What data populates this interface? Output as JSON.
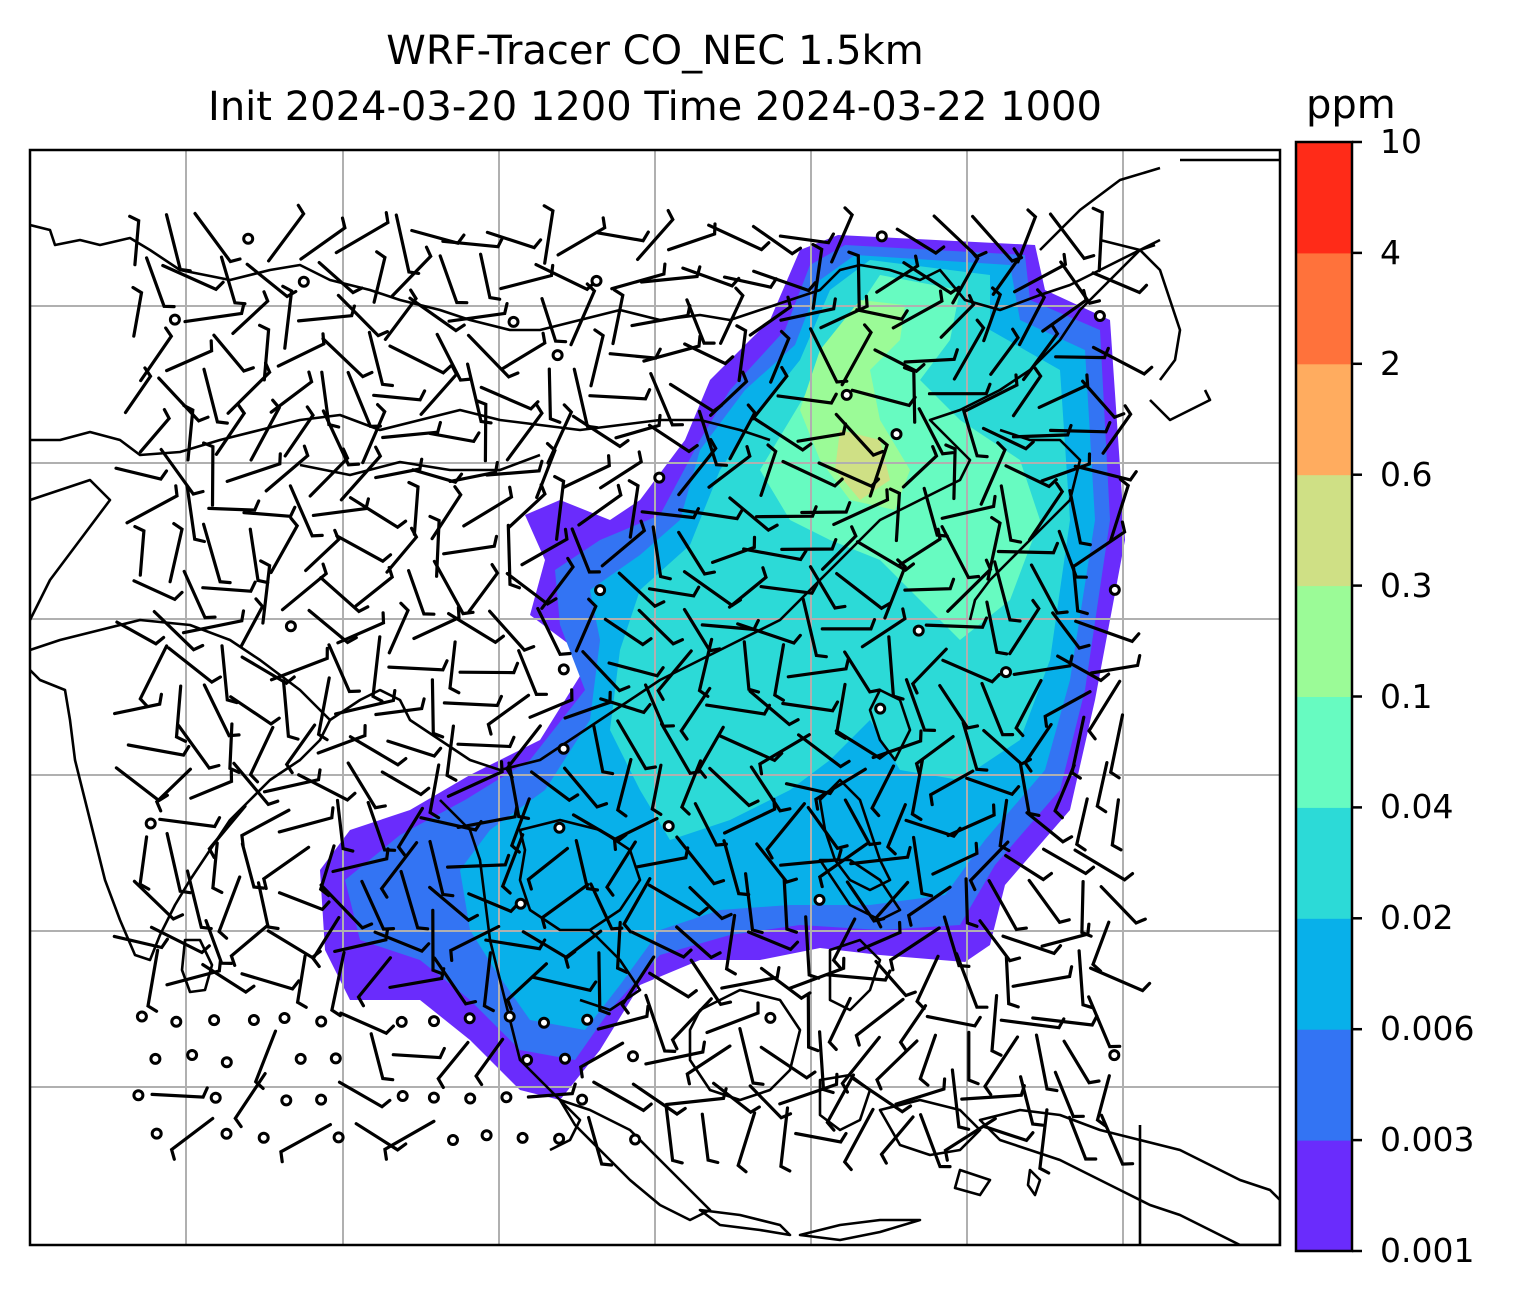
{
  "title": {
    "line1": "WRF-Tracer CO_NEC 1.5km",
    "line2": "Init 2024-03-20 1200 Time 2024-03-22 1000"
  },
  "colorbar": {
    "unit": "ppm",
    "levels": [
      "0.001",
      "0.003",
      "0.006",
      "0.02",
      "0.04",
      "0.1",
      "0.3",
      "0.6",
      "2",
      "4",
      "10"
    ],
    "colors": [
      "#6a2cfc",
      "#3374f3",
      "#08b0ea",
      "#2cdad7",
      "#67fbc1",
      "#9bfb97",
      "#cfe085",
      "#ffac5f",
      "#ff723b",
      "#ff2b18"
    ]
  },
  "map": {
    "gridlines": true,
    "coastline_color": "#000000",
    "grid_color": "#b0b0b0",
    "wind_barbs": true,
    "calm_markers": true
  }
}
